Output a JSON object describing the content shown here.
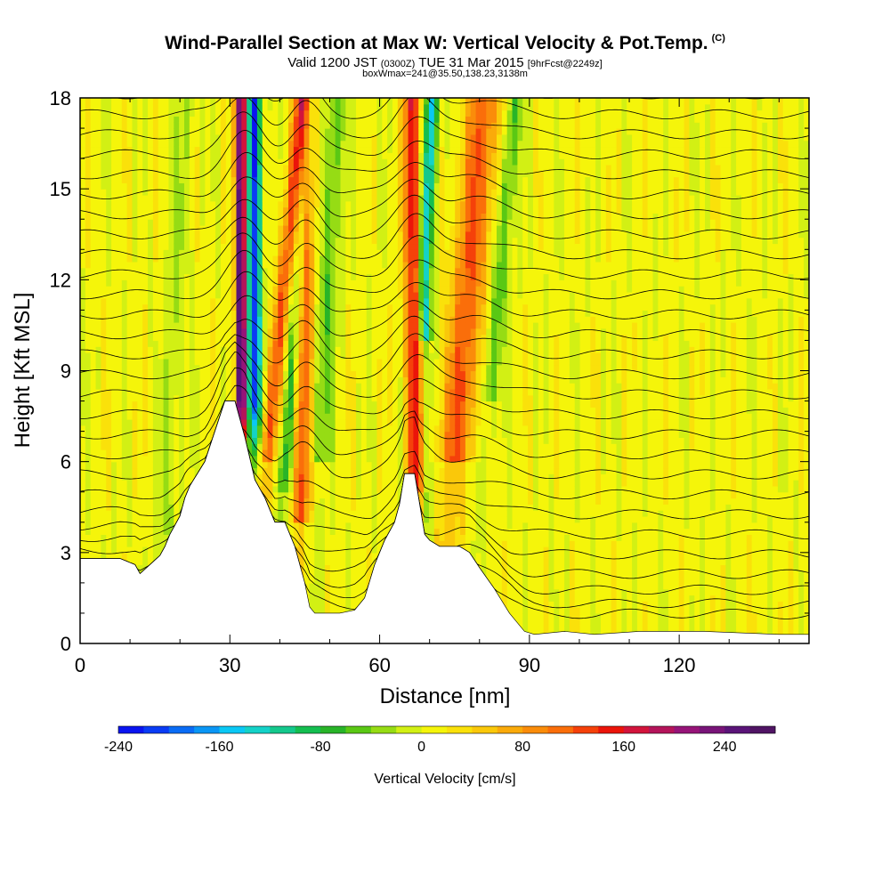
{
  "header": {
    "title": "Wind-Parallel Section at Max W: Vertical Velocity & Pot.Temp.",
    "copyright": "(C)",
    "valid_prefix": "Valid 1200 JST",
    "valid_zulu": "(0300Z)",
    "valid_date": "TUE 31 Mar 2015",
    "forecast": "[9hrFcst@2249z]",
    "box_info": "boxWmax=241@35.50,138.23,3138m"
  },
  "chart_data": {
    "type": "heatmap",
    "xlabel": "Distance [nm]",
    "ylabel": "Height [Kft MSL]",
    "xlim": [
      0,
      146
    ],
    "ylim": [
      0,
      18
    ],
    "xticks": [
      0,
      30,
      60,
      90,
      120
    ],
    "yticks": [
      0,
      3,
      6,
      9,
      12,
      15,
      18
    ],
    "colorbar": {
      "title": "Vertical Velocity [cm/s]",
      "range": [
        -240,
        280
      ],
      "ticks": [
        -240,
        -160,
        -80,
        0,
        80,
        160,
        240
      ],
      "colors": [
        "#0a14f0",
        "#0a3cf5",
        "#0a6cf5",
        "#0a96f5",
        "#0ac8f5",
        "#14d2c8",
        "#14c88c",
        "#14be50",
        "#28b428",
        "#5ac814",
        "#96dc14",
        "#d2f014",
        "#f5f50a",
        "#fae10a",
        "#fac80a",
        "#faaa0a",
        "#fa8c0a",
        "#fa6e0a",
        "#f5410a",
        "#eb140a",
        "#d2143c",
        "#b4145a",
        "#961478",
        "#781478",
        "#5a1478",
        "#501464"
      ]
    },
    "terrain": [
      [
        0,
        2.8
      ],
      [
        3,
        2.8
      ],
      [
        8,
        2.8
      ],
      [
        11,
        2.6
      ],
      [
        12,
        2.3
      ],
      [
        14,
        2.6
      ],
      [
        16,
        2.9
      ],
      [
        17,
        3.2
      ],
      [
        18,
        3.6
      ],
      [
        20,
        4.2
      ],
      [
        21,
        4.8
      ],
      [
        22,
        5.2
      ],
      [
        25,
        6.0
      ],
      [
        27,
        7.0
      ],
      [
        29,
        8.0
      ],
      [
        31,
        8.0
      ],
      [
        33,
        6.8
      ],
      [
        35,
        5.4
      ],
      [
        37,
        4.8
      ],
      [
        39,
        4.0
      ],
      [
        41,
        4.0
      ],
      [
        43,
        3.2
      ],
      [
        45,
        2.0
      ],
      [
        46,
        1.2
      ],
      [
        47,
        1.0
      ],
      [
        52,
        1.0
      ],
      [
        55,
        1.1
      ],
      [
        57,
        1.5
      ],
      [
        59,
        2.6
      ],
      [
        61,
        3.4
      ],
      [
        63,
        4.0
      ],
      [
        64,
        4.6
      ],
      [
        65,
        5.6
      ],
      [
        67,
        5.6
      ],
      [
        69,
        3.6
      ],
      [
        70,
        3.4
      ],
      [
        72,
        3.2
      ],
      [
        76,
        3.2
      ],
      [
        78,
        3.0
      ],
      [
        80,
        2.5
      ],
      [
        83,
        1.8
      ],
      [
        86,
        1.0
      ],
      [
        89,
        0.4
      ],
      [
        91,
        0.3
      ],
      [
        97,
        0.4
      ],
      [
        103,
        0.3
      ],
      [
        112,
        0.4
      ],
      [
        125,
        0.4
      ],
      [
        140,
        0.3
      ],
      [
        146,
        0.3
      ]
    ],
    "contour_level_count": 28
  }
}
